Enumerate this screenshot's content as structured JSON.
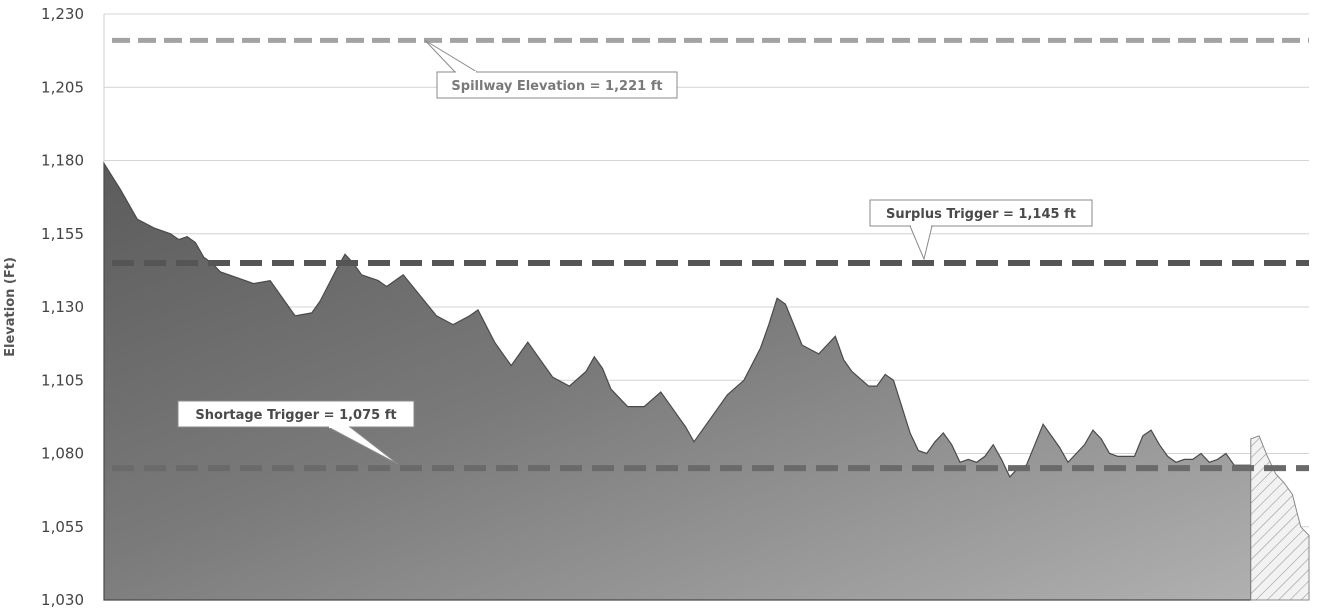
{
  "chart_data": {
    "type": "area",
    "title": "",
    "ylabel": "Elevation (Ft)",
    "xlabel": "",
    "ylim": [
      1030,
      1230
    ],
    "yticks": [
      1030,
      1055,
      1080,
      1105,
      1130,
      1155,
      1180,
      1205,
      1230
    ],
    "ytick_labels": [
      "1,030",
      "1,055",
      "1,080",
      "1,105",
      "1,130",
      "1,155",
      "1,180",
      "1,205",
      "1,230"
    ],
    "grid": true,
    "x_range": [
      0,
      145
    ],
    "projection_start_x": 138,
    "series": [
      {
        "values": [
          [
            0,
            1179
          ],
          [
            2,
            1170
          ],
          [
            4,
            1160
          ],
          [
            6,
            1157
          ],
          [
            8,
            1155
          ],
          [
            9,
            1153
          ],
          [
            10,
            1154
          ],
          [
            11,
            1152
          ],
          [
            12,
            1147
          ],
          [
            13,
            1145
          ],
          [
            14,
            1142
          ],
          [
            16,
            1140
          ],
          [
            18,
            1138
          ],
          [
            20,
            1139
          ],
          [
            22,
            1131
          ],
          [
            23,
            1127
          ],
          [
            25,
            1128
          ],
          [
            26,
            1132
          ],
          [
            28,
            1143
          ],
          [
            29,
            1148
          ],
          [
            30,
            1145
          ],
          [
            31,
            1141
          ],
          [
            33,
            1139
          ],
          [
            34,
            1137
          ],
          [
            36,
            1141
          ],
          [
            38,
            1134
          ],
          [
            40,
            1127
          ],
          [
            42,
            1124
          ],
          [
            44,
            1127
          ],
          [
            45,
            1129
          ],
          [
            47,
            1118
          ],
          [
            49,
            1110
          ],
          [
            50,
            1114
          ],
          [
            51,
            1118
          ],
          [
            53,
            1110
          ],
          [
            54,
            1106
          ],
          [
            56,
            1103
          ],
          [
            58,
            1108
          ],
          [
            59,
            1113
          ],
          [
            60,
            1109
          ],
          [
            61,
            1102
          ],
          [
            63,
            1096
          ],
          [
            65,
            1096
          ],
          [
            67,
            1101
          ],
          [
            68,
            1097
          ],
          [
            70,
            1089
          ],
          [
            71,
            1084
          ],
          [
            73,
            1092
          ],
          [
            75,
            1100
          ],
          [
            77,
            1105
          ],
          [
            79,
            1116
          ],
          [
            80,
            1124
          ],
          [
            81,
            1133
          ],
          [
            82,
            1131
          ],
          [
            83,
            1124
          ],
          [
            84,
            1117
          ],
          [
            86,
            1114
          ],
          [
            87,
            1117
          ],
          [
            88,
            1120
          ],
          [
            89,
            1112
          ],
          [
            90,
            1108
          ],
          [
            92,
            1103
          ],
          [
            93,
            1103
          ],
          [
            94,
            1107
          ],
          [
            95,
            1105
          ],
          [
            96,
            1096
          ],
          [
            97,
            1087
          ],
          [
            98,
            1081
          ],
          [
            99,
            1080
          ],
          [
            100,
            1084
          ],
          [
            101,
            1087
          ],
          [
            102,
            1083
          ],
          [
            103,
            1077
          ],
          [
            104,
            1078
          ],
          [
            105,
            1077
          ],
          [
            106,
            1079
          ],
          [
            107,
            1083
          ],
          [
            108,
            1078
          ],
          [
            109,
            1072
          ],
          [
            110,
            1075
          ],
          [
            111,
            1076
          ],
          [
            112,
            1083
          ],
          [
            113,
            1090
          ],
          [
            114,
            1086
          ],
          [
            115,
            1082
          ],
          [
            116,
            1077
          ],
          [
            117,
            1080
          ],
          [
            118,
            1083
          ],
          [
            119,
            1088
          ],
          [
            120,
            1085
          ],
          [
            121,
            1080
          ],
          [
            122,
            1079
          ],
          [
            124,
            1079
          ],
          [
            125,
            1086
          ],
          [
            126,
            1088
          ],
          [
            127,
            1083
          ],
          [
            128,
            1079
          ],
          [
            129,
            1077
          ],
          [
            130,
            1078
          ],
          [
            131,
            1078
          ],
          [
            132,
            1080
          ],
          [
            133,
            1077
          ],
          [
            134,
            1078
          ],
          [
            135,
            1080
          ],
          [
            136,
            1076
          ],
          [
            138,
            1076
          ]
        ],
        "color": "#6e6e6e"
      },
      {
        "values": [
          [
            138,
            1085
          ],
          [
            139,
            1086
          ],
          [
            140,
            1079
          ],
          [
            141,
            1073
          ],
          [
            142,
            1070
          ],
          [
            143,
            1066
          ],
          [
            144,
            1055
          ],
          [
            145,
            1052
          ]
        ],
        "color": "#cfcfcf",
        "hatched": true
      }
    ],
    "reference_lines": [
      {
        "label": "Spillway Elevation = 1,221 ft",
        "value": 1221,
        "color": "#a3a3a3"
      },
      {
        "label": "Surplus Trigger = 1,145 ft",
        "value": 1145,
        "color": "#555555"
      },
      {
        "label": "Shortage Trigger = 1,075 ft",
        "value": 1075,
        "color": "#6a6a6a"
      }
    ]
  }
}
